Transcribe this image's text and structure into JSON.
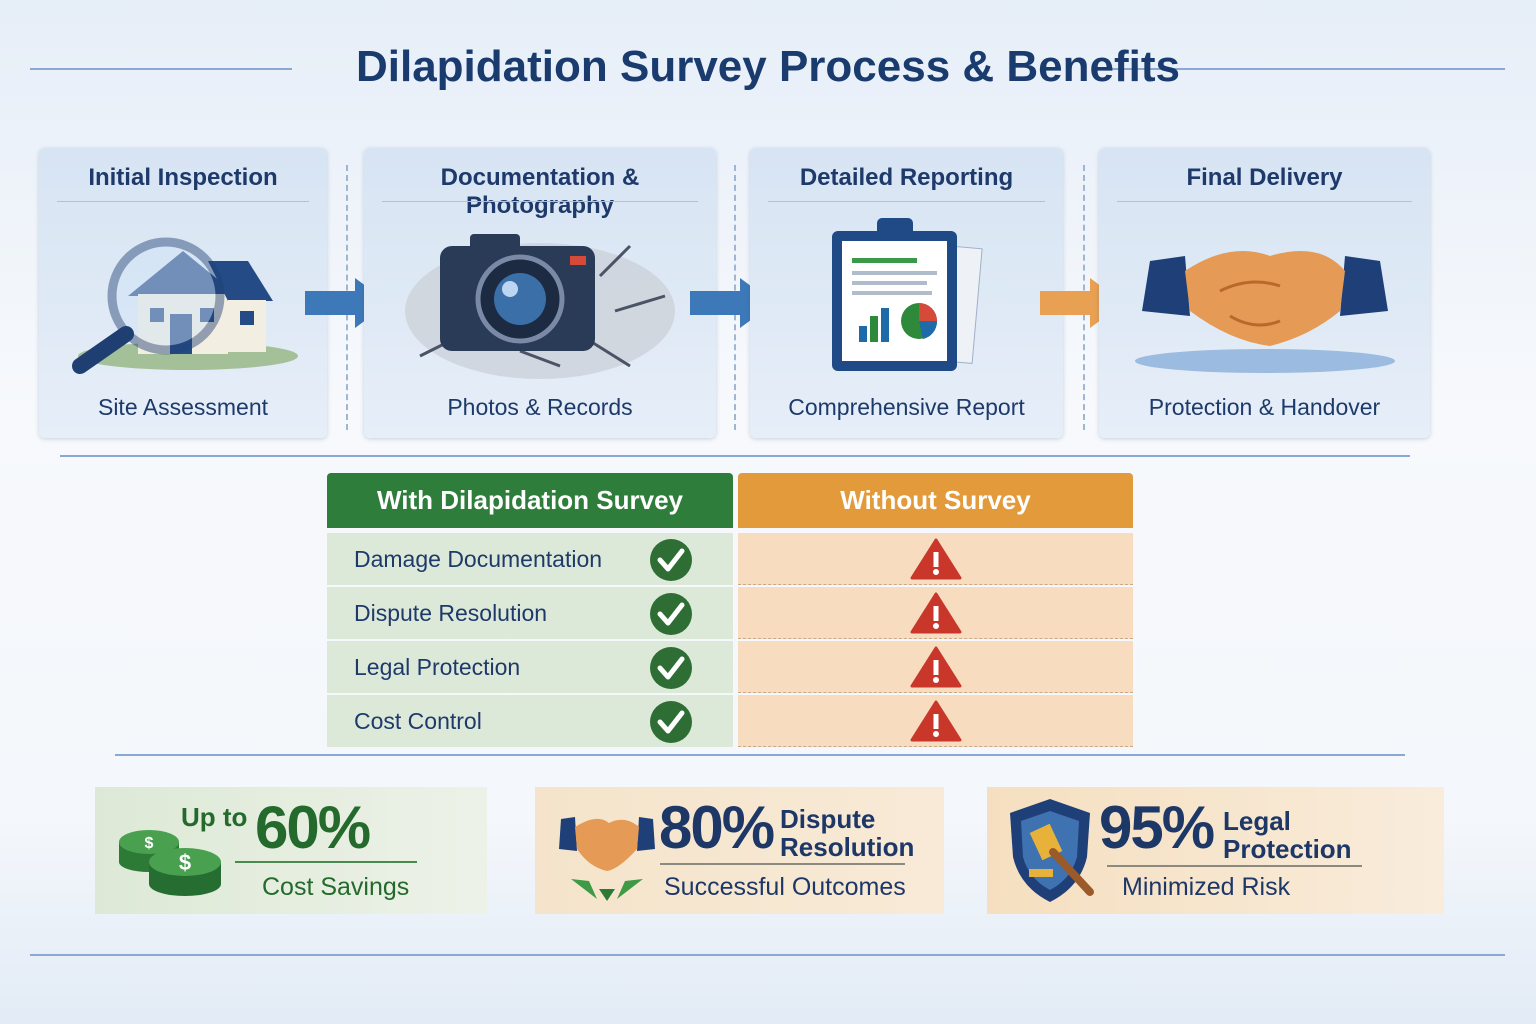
{
  "title": "Dilapidation Survey Process & Benefits",
  "steps": [
    {
      "title": "Initial Inspection",
      "label": "Site Assessment",
      "icon": "house-magnifier-icon"
    },
    {
      "title": "Documentation & Photography",
      "label": "Photos & Records",
      "icon": "camera-icon"
    },
    {
      "title": "Detailed Reporting",
      "label": "Comprehensive Report",
      "icon": "clipboard-report-icon"
    },
    {
      "title": "Final Delivery",
      "label": "Protection & Handover",
      "icon": "handshake-icon"
    }
  ],
  "comparison": {
    "with_header": "With Dilapidation Survey",
    "without_header": "Without Survey",
    "rows": [
      "Damage Documentation",
      "Dispute Resolution",
      "Legal Protection",
      "Cost Control"
    ],
    "colors": {
      "with": "#2e7d3a",
      "without": "#e39a3a",
      "check": "#2e6e35",
      "warning": "#c9362a"
    }
  },
  "stats": [
    {
      "prefix": "Up to",
      "value": "60%",
      "label": "Cost Savings",
      "icon": "money-coins-icon"
    },
    {
      "value": "80%",
      "label": "Dispute Resolution",
      "sub": "Successful Outcomes",
      "icon": "handshake-icon"
    },
    {
      "value": "95%",
      "label": "Legal Protection",
      "sub": "Minimized Risk",
      "icon": "shield-gavel-icon"
    }
  ]
}
